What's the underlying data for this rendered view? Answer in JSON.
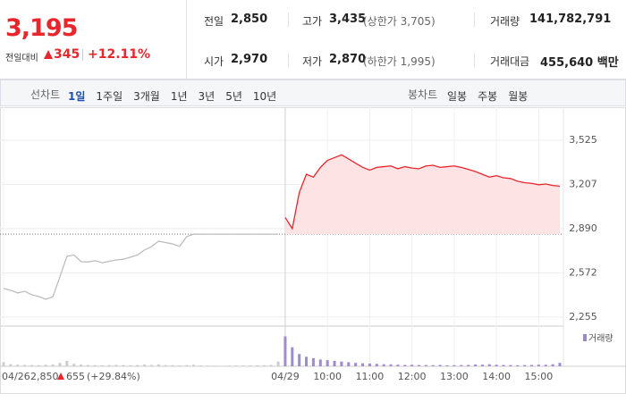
{
  "quote": {
    "price": "3,195",
    "change_label": "전일대비",
    "change": "345",
    "change_pct": "+12.11%"
  },
  "stats": [
    {
      "label": "전일",
      "value": "2,850"
    },
    {
      "label": "고가",
      "value": "3,435",
      "note": "(상한가 3,705)"
    },
    {
      "label": "거래량",
      "value": "141,782,791"
    },
    {
      "label": "시가",
      "value": "2,970"
    },
    {
      "label": "저가",
      "value": "2,870",
      "note": "(하한가 1,995)"
    },
    {
      "label": "거래대금",
      "value": "455,640 백만"
    }
  ],
  "tabs": {
    "line_label": "선차트",
    "line": [
      "1일",
      "1주일",
      "3개월",
      "1년",
      "3년",
      "5년",
      "10년"
    ],
    "candle_label": "봉차트",
    "candle": [
      "일봉",
      "주봉",
      "월봉"
    ]
  },
  "chart_data": {
    "type": "line",
    "categories": [
      "04/26",
      null,
      null,
      null,
      null,
      null,
      null,
      null,
      null,
      null,
      null,
      null,
      null,
      null,
      null,
      null,
      null,
      null,
      null,
      null,
      null,
      null,
      null,
      null,
      null,
      null,
      null,
      null,
      null,
      null,
      null,
      null,
      null,
      null,
      null,
      null,
      null,
      null,
      null,
      null,
      "04/29",
      null,
      null,
      null,
      null,
      null,
      "10:00",
      null,
      null,
      null,
      null,
      null,
      "11:00",
      null,
      null,
      null,
      null,
      null,
      "12:00",
      null,
      null,
      null,
      null,
      null,
      "13:00",
      null,
      null,
      null,
      null,
      null,
      "14:00",
      null,
      null,
      null,
      null,
      null,
      "15:00",
      null,
      null,
      null
    ],
    "series": [
      {
        "color": "#bdbdbd",
        "values": [
          2460,
          2447,
          2428,
          2440,
          2415,
          2402,
          2383,
          2400,
          2544,
          2691,
          2700,
          2653,
          2650,
          2660,
          2645,
          2655,
          2665,
          2670,
          2685,
          2700,
          2736,
          2760,
          2800,
          2790,
          2780,
          2762,
          2832,
          2851,
          2850,
          2850,
          2850,
          2850,
          2850,
          2850,
          2850,
          2850,
          2850,
          2850,
          2850,
          2850,
          null,
          null,
          null,
          null,
          null,
          null,
          null,
          null,
          null,
          null,
          null,
          null,
          null,
          null,
          null,
          null,
          null,
          null,
          null,
          null,
          null,
          null,
          null,
          null,
          null,
          null,
          null,
          null,
          null,
          null,
          null,
          null,
          null,
          null,
          null,
          null,
          null,
          null,
          null,
          null
        ]
      },
      {
        "color": "#e8262c",
        "fill": "#fde3e4",
        "values": [
          null,
          null,
          null,
          null,
          null,
          null,
          null,
          null,
          null,
          null,
          null,
          null,
          null,
          null,
          null,
          null,
          null,
          null,
          null,
          null,
          null,
          null,
          null,
          null,
          null,
          null,
          null,
          null,
          null,
          null,
          null,
          null,
          null,
          null,
          null,
          null,
          null,
          null,
          null,
          null,
          2970,
          2890,
          3150,
          3280,
          3260,
          3330,
          3380,
          3400,
          3420,
          3390,
          3360,
          3330,
          3310,
          3330,
          3335,
          3340,
          3320,
          3335,
          3325,
          3320,
          3340,
          3345,
          3330,
          3335,
          3340,
          3330,
          3315,
          3300,
          3280,
          3260,
          3270,
          3255,
          3250,
          3230,
          3220,
          3215,
          3205,
          3210,
          3200,
          3195
        ]
      }
    ],
    "reference": 2850,
    "ylim": [
      2190,
      3730
    ],
    "yticks": [
      {
        "value": 2255,
        "label": "2,255"
      },
      {
        "value": 2572,
        "label": "2,572"
      },
      {
        "value": 2890,
        "label": "2,890"
      },
      {
        "value": 3207,
        "label": "3,207"
      },
      {
        "value": 3525,
        "label": "3,525"
      }
    ],
    "grid": true,
    "volume_name": "거래량",
    "volume_legend_color": "#9c88c6",
    "vlim": [
      0,
      25000000
    ],
    "volume_series": [
      {
        "color": "#cccccc",
        "values": [
          3000000,
          1500000,
          1200000,
          1000000,
          900000,
          800000,
          1100000,
          1300000,
          2500000,
          4000000,
          1800000,
          1200000,
          900000,
          800000,
          700000,
          900000,
          1000000,
          800000,
          700000,
          900000,
          1200000,
          1000000,
          1400000,
          900000,
          800000,
          700000,
          900000,
          1100000,
          600000,
          500000,
          500000,
          400000,
          500000,
          600000,
          500000,
          600000,
          700000,
          800000,
          1000000,
          3500000,
          null,
          null,
          null,
          null,
          null,
          null,
          null,
          null,
          null,
          null,
          null,
          null,
          null,
          null,
          null,
          null,
          null,
          null,
          null,
          null,
          null,
          null,
          null,
          null,
          null,
          null,
          null,
          null,
          null,
          null,
          null,
          null,
          null,
          null,
          null,
          null,
          null,
          null,
          null,
          null
        ]
      },
      {
        "color": "#a08bd0",
        "values": [
          null,
          null,
          null,
          null,
          null,
          null,
          null,
          null,
          null,
          null,
          null,
          null,
          null,
          null,
          null,
          null,
          null,
          null,
          null,
          null,
          null,
          null,
          null,
          null,
          null,
          null,
          null,
          null,
          null,
          null,
          null,
          null,
          null,
          null,
          null,
          null,
          null,
          null,
          null,
          null,
          22000000,
          14000000,
          9000000,
          7000000,
          6000000,
          5000000,
          4500000,
          4000000,
          3500000,
          3000000,
          2500000,
          2200000,
          2000000,
          1800000,
          1500000,
          1400000,
          1200000,
          1000000,
          1100000,
          900000,
          900000,
          800000,
          1000000,
          700000,
          800000,
          900000,
          1000000,
          1300000,
          1200000,
          1500000,
          1100000,
          1000000,
          900000,
          800000,
          900000,
          1000000,
          1200000,
          1100000,
          1500000,
          2500000
        ]
      }
    ],
    "prev_summary": {
      "close": "2,850",
      "change": "655",
      "change_pct": "(+29.84%)"
    }
  }
}
